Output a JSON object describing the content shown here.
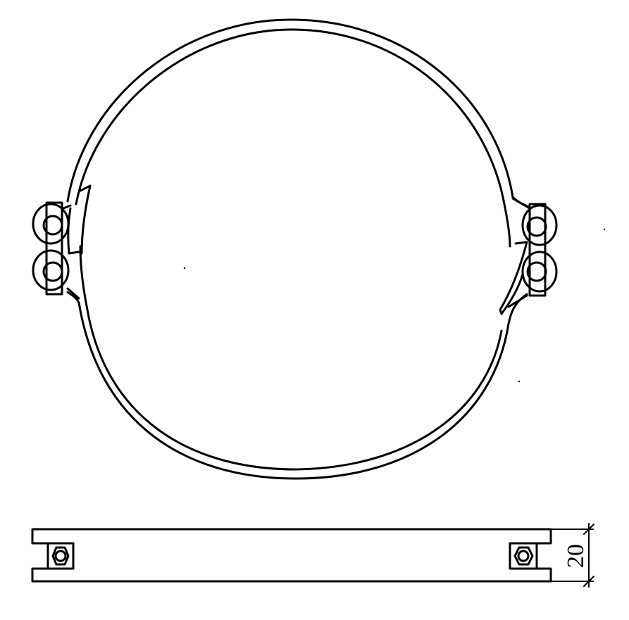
{
  "drawing": {
    "dimension_label": "20",
    "line_color": "#000000",
    "background_color": "#ffffff"
  }
}
